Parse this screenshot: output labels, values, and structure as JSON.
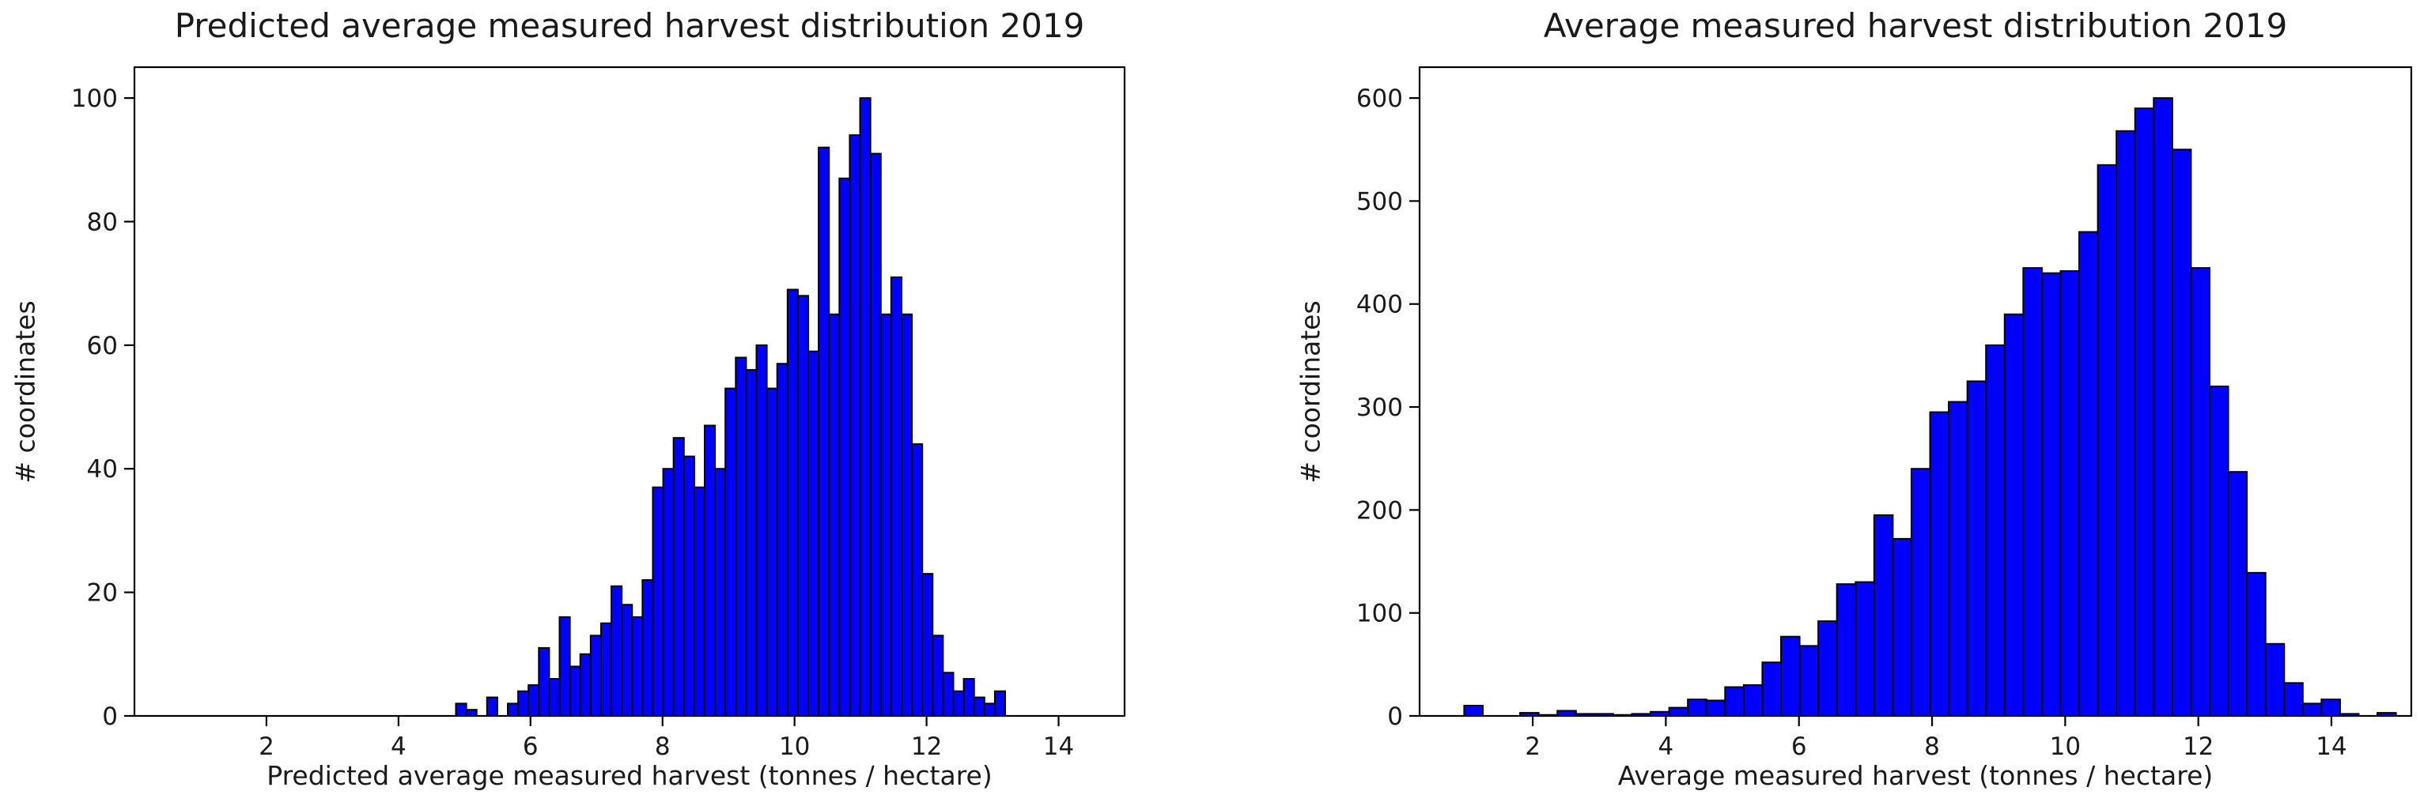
{
  "figure": {
    "background": "#ffffff",
    "description": "Two side-by-side matplotlib-style histograms comparing predicted vs measured harvest distributions for 2019"
  },
  "colors": {
    "bar_fill": "#0000ff",
    "bar_edge": "#000000",
    "spine": "#000000",
    "text": "#1a1a1a",
    "background": "#ffffff"
  },
  "chart_data": [
    {
      "type": "bar",
      "subtype": "histogram",
      "title": "Predicted average measured harvest distribution 2019",
      "xlabel": "Predicted average measured harvest (tonnes / hectare)",
      "ylabel": "# coordinates",
      "xlim": [
        0,
        15
      ],
      "ylim": [
        0,
        105
      ],
      "xticks": [
        2,
        4,
        6,
        8,
        10,
        12,
        14
      ],
      "yticks": [
        0,
        20,
        40,
        60,
        80,
        100
      ],
      "grid": false,
      "legend": null,
      "bin_start": 4.87,
      "bin_width": 0.157,
      "values": [
        2,
        1,
        0,
        3,
        0,
        2,
        4,
        5,
        11,
        6,
        16,
        8,
        10,
        13,
        15,
        21,
        18,
        16,
        22,
        37,
        40,
        45,
        42,
        37,
        47,
        40,
        53,
        58,
        56,
        60,
        53,
        57,
        69,
        68,
        59,
        92,
        65,
        87,
        94,
        100,
        91,
        65,
        71,
        65,
        44,
        23,
        13,
        7,
        4,
        6,
        3,
        2,
        4
      ]
    },
    {
      "type": "bar",
      "subtype": "histogram",
      "title": "Average measured harvest distribution 2019",
      "xlabel": "Average measured harvest (tonnes / hectare)",
      "ylabel": "# coordinates",
      "xlim": [
        0.3,
        15.2
      ],
      "ylim": [
        0,
        630
      ],
      "xticks": [
        2,
        4,
        6,
        8,
        10,
        12,
        14
      ],
      "yticks": [
        0,
        100,
        200,
        300,
        400,
        500,
        600
      ],
      "grid": false,
      "legend": null,
      "bin_start": 0.97,
      "bin_width": 0.28,
      "values": [
        10,
        0,
        0,
        3,
        1,
        5,
        2,
        2,
        1,
        2,
        4,
        8,
        16,
        15,
        28,
        30,
        52,
        77,
        68,
        92,
        128,
        130,
        195,
        172,
        240,
        295,
        305,
        325,
        360,
        390,
        435,
        430,
        432,
        470,
        535,
        568,
        590,
        600,
        550,
        435,
        320,
        237,
        139,
        70,
        32,
        12,
        16,
        2,
        0,
        3
      ]
    }
  ]
}
